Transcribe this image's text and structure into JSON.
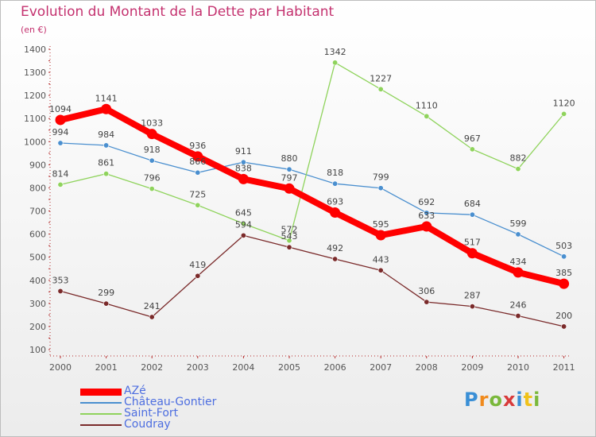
{
  "title": "Evolution du Montant de la Dette par Habitant",
  "subtitle": "(en €)",
  "logo_letters": [
    "P",
    "r",
    "o",
    "x",
    "i",
    "t",
    "i"
  ],
  "chart_data": {
    "type": "line",
    "x": [
      "2000",
      "2001",
      "2002",
      "2003",
      "2004",
      "2005",
      "2006",
      "2007",
      "2008",
      "2009",
      "2010",
      "2011"
    ],
    "ylim": [
      100,
      1400
    ],
    "yticks": [
      "100",
      "200",
      "300",
      "400",
      "500",
      "600",
      "700",
      "800",
      "900",
      "1000",
      "1100",
      "1200",
      "1300",
      "1400"
    ],
    "grid": false,
    "legend_position": "bottom-left",
    "series": [
      {
        "name": "AZé",
        "color": "#ff0000",
        "values": [
          1094,
          1141,
          1033,
          936,
          838,
          797,
          693,
          595,
          633,
          517,
          434,
          385
        ]
      },
      {
        "name": "Château-Gontier",
        "color": "#4a8fcf",
        "values": [
          994,
          984,
          918,
          866,
          911,
          880,
          818,
          799,
          692,
          684,
          599,
          503
        ]
      },
      {
        "name": "Saint-Fort",
        "color": "#8fd35c",
        "values": [
          814,
          861,
          796,
          725,
          645,
          572,
          1342,
          1227,
          1110,
          967,
          882,
          1120
        ]
      },
      {
        "name": "Coudray",
        "color": "#7a2a2a",
        "values": [
          353,
          299,
          241,
          419,
          594,
          543,
          492,
          443,
          306,
          287,
          246,
          200
        ]
      }
    ]
  }
}
